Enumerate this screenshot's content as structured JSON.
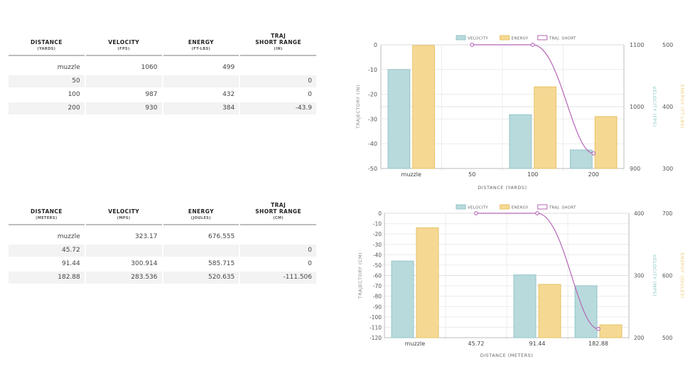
{
  "tables": [
    {
      "headers": [
        {
          "main": [
            "DISTANCE"
          ],
          "sub": "(YARDS)"
        },
        {
          "main": [
            "VELOCITY"
          ],
          "sub": "(FPS)"
        },
        {
          "main": [
            "ENERGY"
          ],
          "sub": "(FT-LBS)"
        },
        {
          "main": [
            "TRAJ",
            "SHORT RANGE"
          ],
          "sub": "(IN)"
        }
      ],
      "rows": [
        [
          "muzzle",
          "1060",
          "499",
          ""
        ],
        [
          "50",
          "",
          "",
          "0"
        ],
        [
          "100",
          "987",
          "432",
          "0"
        ],
        [
          "200",
          "930",
          "384",
          "-43.9"
        ]
      ]
    },
    {
      "headers": [
        {
          "main": [
            "DISTANCE"
          ],
          "sub": "(METERS)"
        },
        {
          "main": [
            "VELOCITY"
          ],
          "sub": "(MPS)"
        },
        {
          "main": [
            "ENERGY"
          ],
          "sub": "(JOULES)"
        },
        {
          "main": [
            "TRAJ",
            "SHORT RANGE"
          ],
          "sub": "(CM)"
        }
      ],
      "rows": [
        [
          "muzzle",
          "323.17",
          "676.555",
          ""
        ],
        [
          "45.72",
          "",
          "",
          "0"
        ],
        [
          "91.44",
          "300.914",
          "585.715",
          "0"
        ],
        [
          "182.88",
          "283.536",
          "520.635",
          "-111.506"
        ]
      ]
    }
  ],
  "colors": {
    "velocity": "#b8dadc",
    "velocity_border": "#94c4c8",
    "energy": "#f5d993",
    "energy_border": "#e7c266",
    "trajectory": "#b565b6",
    "velocity_axis_text": "#88c5c8",
    "energy_axis_text": "#efcc7a"
  },
  "chart_data": [
    {
      "type": "bar",
      "categories": [
        "muzzle",
        "50",
        "100",
        "200"
      ],
      "xlabel": "DISTANCE (YARDS)",
      "legend": [
        "VELOCITY",
        "ENERGY",
        "TRAJ. SHORT"
      ],
      "legend_position": "top",
      "grid": true,
      "series": [
        {
          "name": "VELOCITY",
          "type": "bar",
          "axis": "velocity",
          "values": [
            1060,
            null,
            987,
            930
          ]
        },
        {
          "name": "ENERGY",
          "type": "bar",
          "axis": "energy",
          "values": [
            499,
            null,
            432,
            384
          ]
        },
        {
          "name": "TRAJ. SHORT",
          "type": "line",
          "axis": "trajectory",
          "values": [
            null,
            0,
            0,
            -43.9
          ]
        }
      ],
      "axes": {
        "trajectory": {
          "label": "TRAJECTORY (IN)",
          "range": [
            -50,
            0
          ],
          "ticks": [
            0,
            -10,
            -20,
            -30,
            -40,
            -50
          ],
          "side": "left"
        },
        "velocity": {
          "label": "VELOCITY (FPS)",
          "range": [
            900,
            1100
          ],
          "ticks": [
            1100,
            1000,
            900
          ],
          "side": "right"
        },
        "energy": {
          "label": "ENERGY (FT-LBS)",
          "range": [
            300,
            500
          ],
          "ticks": [
            500,
            400,
            300
          ],
          "side": "right"
        }
      }
    },
    {
      "type": "bar",
      "categories": [
        "muzzle",
        "45.72",
        "91.44",
        "182.88"
      ],
      "xlabel": "DISTANCE (METERS)",
      "legend": [
        "VELOCITY",
        "ENERGY",
        "TRAJ. SHORT"
      ],
      "legend_position": "top",
      "grid": true,
      "series": [
        {
          "name": "VELOCITY",
          "type": "bar",
          "axis": "velocity",
          "values": [
            323.17,
            null,
            300.914,
            283.536
          ]
        },
        {
          "name": "ENERGY",
          "type": "bar",
          "axis": "energy",
          "values": [
            676.555,
            null,
            585.715,
            520.635
          ]
        },
        {
          "name": "TRAJ. SHORT",
          "type": "line",
          "axis": "trajectory",
          "values": [
            null,
            0,
            0,
            -111.506
          ]
        }
      ],
      "axes": {
        "trajectory": {
          "label": "TRAJECTORY (CM)",
          "range": [
            -120,
            0
          ],
          "ticks": [
            0,
            -10,
            -20,
            -30,
            -40,
            -50,
            -60,
            -70,
            -80,
            -90,
            -100,
            -110,
            -120
          ],
          "side": "left"
        },
        "velocity": {
          "label": "VELOCITY (MPS)",
          "range": [
            200,
            400
          ],
          "ticks": [
            400,
            300,
            200
          ],
          "side": "right"
        },
        "energy": {
          "label": "ENERGY (JOULES)",
          "range": [
            500,
            700
          ],
          "ticks": [
            700,
            600,
            500
          ],
          "side": "right"
        }
      }
    }
  ]
}
